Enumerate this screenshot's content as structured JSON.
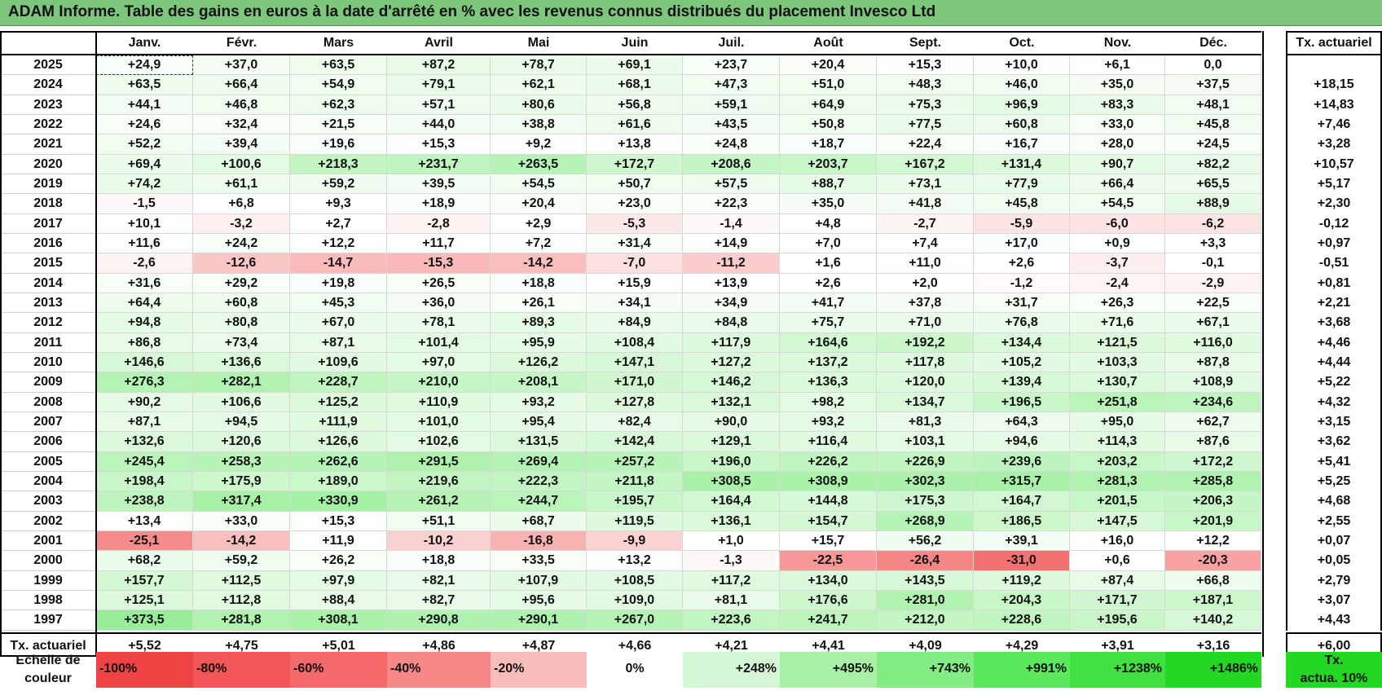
{
  "title": "ADAM Informe. Table des gains en euros à la date d'arrêté en % avec les revenus connus distribués du placement Invesco Ltd",
  "months": [
    "Janv.",
    "Févr.",
    "Mars",
    "Avril",
    "Mai",
    "Juin",
    "Juil.",
    "Août",
    "Sept.",
    "Oct.",
    "Nov.",
    "Déc."
  ],
  "rate_header": "Tx. actuariel",
  "rows": [
    {
      "year": "2025",
      "values": [
        "+24,9",
        "+37,0",
        "+63,5",
        "+87,2",
        "+78,7",
        "+69,1",
        "+23,7",
        "+20,4",
        "+15,3",
        "+10,0",
        "+6,1",
        "0,0"
      ],
      "rate": ""
    },
    {
      "year": "2024",
      "values": [
        "+63,5",
        "+66,4",
        "+54,9",
        "+79,1",
        "+62,1",
        "+68,1",
        "+47,3",
        "+51,0",
        "+48,3",
        "+46,0",
        "+35,0",
        "+37,5"
      ],
      "rate": "+18,15"
    },
    {
      "year": "2023",
      "values": [
        "+44,1",
        "+46,8",
        "+62,3",
        "+57,1",
        "+80,6",
        "+56,8",
        "+59,1",
        "+64,9",
        "+75,3",
        "+96,9",
        "+83,3",
        "+48,1"
      ],
      "rate": "+14,83"
    },
    {
      "year": "2022",
      "values": [
        "+24,6",
        "+32,4",
        "+21,5",
        "+44,0",
        "+38,8",
        "+61,6",
        "+43,5",
        "+50,8",
        "+77,5",
        "+60,8",
        "+33,0",
        "+45,8"
      ],
      "rate": "+7,46"
    },
    {
      "year": "2021",
      "values": [
        "+52,2",
        "+39,4",
        "+19,6",
        "+15,3",
        "+9,2",
        "+13,8",
        "+24,8",
        "+18,7",
        "+22,4",
        "+16,7",
        "+28,0",
        "+24,5"
      ],
      "rate": "+3,28"
    },
    {
      "year": "2020",
      "values": [
        "+69,4",
        "+100,6",
        "+218,3",
        "+231,7",
        "+263,5",
        "+172,7",
        "+208,6",
        "+203,7",
        "+167,2",
        "+131,4",
        "+90,7",
        "+82,2"
      ],
      "rate": "+10,57"
    },
    {
      "year": "2019",
      "values": [
        "+74,2",
        "+61,1",
        "+59,2",
        "+39,5",
        "+54,5",
        "+50,7",
        "+57,5",
        "+88,7",
        "+73,1",
        "+77,9",
        "+66,4",
        "+65,5"
      ],
      "rate": "+5,17"
    },
    {
      "year": "2018",
      "values": [
        "-1,5",
        "+6,8",
        "+9,3",
        "+18,9",
        "+20,4",
        "+23,0",
        "+22,3",
        "+35,0",
        "+41,8",
        "+45,8",
        "+54,5",
        "+88,9"
      ],
      "rate": "+2,30"
    },
    {
      "year": "2017",
      "values": [
        "+10,1",
        "-3,2",
        "+2,7",
        "-2,8",
        "+2,9",
        "-5,3",
        "-1,4",
        "+4,8",
        "-2,7",
        "-5,9",
        "-6,0",
        "-6,2"
      ],
      "rate": "-0,12"
    },
    {
      "year": "2016",
      "values": [
        "+11,6",
        "+24,2",
        "+12,2",
        "+11,7",
        "+7,2",
        "+31,4",
        "+14,9",
        "+7,0",
        "+7,4",
        "+17,0",
        "+0,9",
        "+3,3"
      ],
      "rate": "+0,97"
    },
    {
      "year": "2015",
      "values": [
        "-2,6",
        "-12,6",
        "-14,7",
        "-15,3",
        "-14,2",
        "-7,0",
        "-11,2",
        "+1,6",
        "+11,0",
        "+2,6",
        "-3,7",
        "-0,1"
      ],
      "rate": "-0,51"
    },
    {
      "year": "2014",
      "values": [
        "+31,6",
        "+29,2",
        "+19,8",
        "+26,5",
        "+18,8",
        "+15,9",
        "+13,9",
        "+2,6",
        "+2,0",
        "-1,2",
        "-2,4",
        "-2,9"
      ],
      "rate": "+0,81"
    },
    {
      "year": "2013",
      "values": [
        "+64,4",
        "+60,8",
        "+45,3",
        "+36,0",
        "+26,1",
        "+34,1",
        "+34,9",
        "+41,7",
        "+37,8",
        "+31,7",
        "+26,3",
        "+22,5"
      ],
      "rate": "+2,21"
    },
    {
      "year": "2012",
      "values": [
        "+94,8",
        "+80,8",
        "+67,0",
        "+78,1",
        "+89,3",
        "+84,9",
        "+84,8",
        "+75,7",
        "+71,0",
        "+76,8",
        "+71,6",
        "+67,1"
      ],
      "rate": "+3,68"
    },
    {
      "year": "2011",
      "values": [
        "+86,8",
        "+73,4",
        "+87,1",
        "+101,4",
        "+95,9",
        "+108,4",
        "+117,9",
        "+164,6",
        "+192,2",
        "+134,4",
        "+121,5",
        "+116,0"
      ],
      "rate": "+4,46"
    },
    {
      "year": "2010",
      "values": [
        "+146,6",
        "+136,6",
        "+109,6",
        "+97,0",
        "+126,2",
        "+147,1",
        "+127,2",
        "+137,2",
        "+117,8",
        "+105,2",
        "+103,3",
        "+87,8"
      ],
      "rate": "+4,44"
    },
    {
      "year": "2009",
      "values": [
        "+276,3",
        "+282,1",
        "+228,7",
        "+210,0",
        "+208,1",
        "+171,0",
        "+146,2",
        "+136,3",
        "+120,0",
        "+139,4",
        "+130,7",
        "+108,9"
      ],
      "rate": "+5,22"
    },
    {
      "year": "2008",
      "values": [
        "+90,2",
        "+106,6",
        "+125,2",
        "+110,9",
        "+93,2",
        "+127,8",
        "+132,1",
        "+98,2",
        "+134,7",
        "+196,5",
        "+251,8",
        "+234,6"
      ],
      "rate": "+4,32"
    },
    {
      "year": "2007",
      "values": [
        "+87,1",
        "+94,5",
        "+111,9",
        "+101,0",
        "+95,4",
        "+82,4",
        "+90,0",
        "+93,2",
        "+81,3",
        "+64,3",
        "+95,0",
        "+62,7"
      ],
      "rate": "+3,15"
    },
    {
      "year": "2006",
      "values": [
        "+132,6",
        "+120,6",
        "+126,6",
        "+102,6",
        "+131,5",
        "+142,4",
        "+129,1",
        "+116,4",
        "+103,1",
        "+94,6",
        "+114,3",
        "+87,6"
      ],
      "rate": "+3,62"
    },
    {
      "year": "2005",
      "values": [
        "+245,4",
        "+258,3",
        "+262,6",
        "+291,5",
        "+269,4",
        "+257,2",
        "+196,0",
        "+226,2",
        "+226,9",
        "+239,6",
        "+203,2",
        "+172,2"
      ],
      "rate": "+5,41"
    },
    {
      "year": "2004",
      "values": [
        "+198,4",
        "+175,9",
        "+189,0",
        "+219,6",
        "+222,3",
        "+211,8",
        "+308,5",
        "+308,9",
        "+302,3",
        "+315,7",
        "+281,3",
        "+285,8"
      ],
      "rate": "+5,25"
    },
    {
      "year": "2003",
      "values": [
        "+238,8",
        "+317,4",
        "+330,9",
        "+261,2",
        "+244,7",
        "+195,7",
        "+164,4",
        "+144,8",
        "+175,3",
        "+164,7",
        "+201,5",
        "+206,3"
      ],
      "rate": "+4,68"
    },
    {
      "year": "2002",
      "values": [
        "+13,4",
        "+33,0",
        "+15,3",
        "+51,1",
        "+68,7",
        "+119,5",
        "+136,1",
        "+154,7",
        "+268,9",
        "+186,5",
        "+147,5",
        "+201,9"
      ],
      "rate": "+2,55"
    },
    {
      "year": "2001",
      "values": [
        "-25,1",
        "-14,2",
        "+11,9",
        "-10,2",
        "-16,8",
        "-9,9",
        "+1,0",
        "+15,7",
        "+56,2",
        "+39,1",
        "+16,0",
        "+12,2"
      ],
      "rate": "+0,07"
    },
    {
      "year": "2000",
      "values": [
        "+68,2",
        "+59,2",
        "+26,2",
        "+18,8",
        "+33,5",
        "+13,2",
        "-1,3",
        "-22,5",
        "-26,4",
        "-31,0",
        "+0,6",
        "-20,3"
      ],
      "rate": "+0,05"
    },
    {
      "year": "1999",
      "values": [
        "+157,7",
        "+112,5",
        "+97,9",
        "+82,1",
        "+107,9",
        "+108,5",
        "+117,2",
        "+134,0",
        "+143,5",
        "+119,2",
        "+87,4",
        "+66,8"
      ],
      "rate": "+2,79"
    },
    {
      "year": "1998",
      "values": [
        "+125,1",
        "+112,8",
        "+88,4",
        "+82,7",
        "+95,6",
        "+109,0",
        "+81,1",
        "+176,6",
        "+281,0",
        "+204,3",
        "+171,7",
        "+187,1"
      ],
      "rate": "+3,07"
    },
    {
      "year": "1997",
      "values": [
        "+373,5",
        "+281,8",
        "+308,1",
        "+290,8",
        "+290,1",
        "+267,0",
        "+223,6",
        "+241,7",
        "+212,0",
        "+228,6",
        "+195,6",
        "+140,2"
      ],
      "rate": "+4,43"
    }
  ],
  "footer": {
    "label": "Tx. actuariel",
    "values": [
      "+5,52",
      "+4,75",
      "+5,01",
      "+4,86",
      "+4,87",
      "+4,66",
      "+4,21",
      "+4,41",
      "+4,09",
      "+4,29",
      "+3,91",
      "+3,16"
    ],
    "rate": "+6,00"
  },
  "scale": {
    "label_line1": "Echelle de",
    "label_line2": "couleur",
    "items": [
      {
        "text": "-100%",
        "color": "#f04444",
        "align": "left"
      },
      {
        "text": "-80%",
        "color": "#f25656",
        "align": "left"
      },
      {
        "text": "-60%",
        "color": "#f46a6a",
        "align": "left"
      },
      {
        "text": "-40%",
        "color": "#f78888",
        "align": "left"
      },
      {
        "text": "-20%",
        "color": "#fbbcbc",
        "align": "left"
      },
      {
        "text": "0%",
        "color": "#ffffff",
        "align": "center"
      },
      {
        "text": "+248%",
        "color": "#d6f7d6",
        "align": "right"
      },
      {
        "text": "+495%",
        "color": "#a8f0a8",
        "align": "right"
      },
      {
        "text": "+743%",
        "color": "#84ec84",
        "align": "right"
      },
      {
        "text": "+991%",
        "color": "#5ce85c",
        "align": "right"
      },
      {
        "text": "+1238%",
        "color": "#3fe03f",
        "align": "right"
      },
      {
        "text": "+1486%",
        "color": "#22d822",
        "align": "right"
      }
    ],
    "rate_line1": "Tx.",
    "rate_line2": "actua. 10%",
    "rate_color": "#22d822"
  },
  "colors": {
    "title_bg": "#7cc77c",
    "neg_strong": "#f26b6b",
    "pos_strong": "#5fe05f"
  }
}
